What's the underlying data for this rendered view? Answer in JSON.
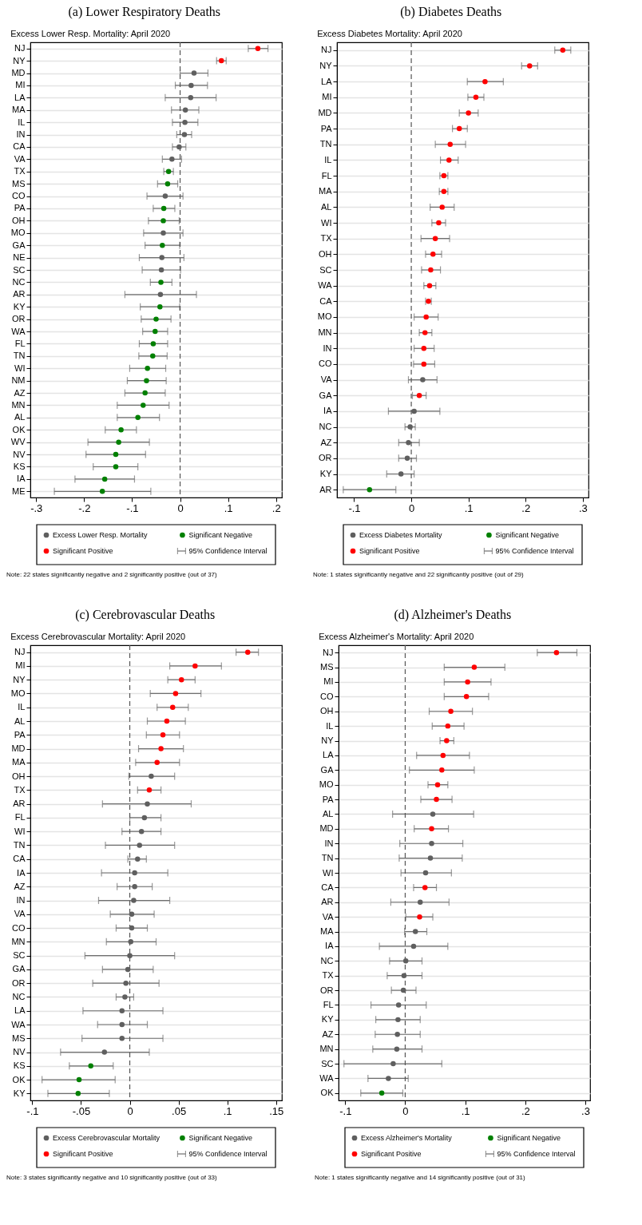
{
  "chart_data": [
    {
      "type": "scatter",
      "orientation": "horizontal",
      "title": "(a) Lower Respiratory Deaths",
      "subtitle": "Excess Lower Resp. Mortality: April 2020",
      "categories": [
        "NJ",
        "NY",
        "MD",
        "MI",
        "LA",
        "MA",
        "IL",
        "IN",
        "CA",
        "VA",
        "TX",
        "MS",
        "CO",
        "PA",
        "OH",
        "MO",
        "GA",
        "NE",
        "SC",
        "NC",
        "AR",
        "KY",
        "OR",
        "WA",
        "FL",
        "TN",
        "WI",
        "NM",
        "AZ",
        "MN",
        "AL",
        "OK",
        "WV",
        "NV",
        "KS",
        "IA",
        "ME"
      ],
      "series": [
        {
          "name": "Excess Lower Resp. Mortality",
          "color": "#5f5f5f",
          "values": [
            null,
            null,
            0.029,
            0.023,
            0.022,
            0.011,
            0.01,
            0.009,
            -0.002,
            -0.017,
            null,
            null,
            -0.031,
            null,
            null,
            -0.035,
            null,
            -0.038,
            -0.039,
            null,
            -0.041,
            null,
            null,
            null,
            null,
            null,
            null,
            null,
            null,
            null,
            null,
            null,
            null,
            null,
            null,
            null,
            null
          ],
          "errors": [
            null,
            null,
            [
              0,
              0.058
            ],
            [
              -0.01,
              0.057
            ],
            [
              -0.031,
              0.075
            ],
            [
              -0.018,
              0.039
            ],
            [
              -0.016,
              0.037
            ],
            [
              -0.007,
              0.024
            ],
            [
              -0.016,
              0.012
            ],
            [
              -0.037,
              0.003
            ],
            null,
            null,
            [
              -0.069,
              0.006
            ],
            null,
            null,
            [
              -0.076,
              0.006
            ],
            null,
            [
              -0.085,
              0.008
            ],
            [
              -0.079,
              0.001
            ],
            null,
            [
              -0.115,
              0.034
            ],
            null,
            null,
            null,
            null,
            null,
            null,
            null,
            null,
            null,
            null,
            null,
            null,
            null,
            null,
            null,
            null
          ]
        },
        {
          "name": "Significant Negative",
          "color": "#008000",
          "values": [
            null,
            null,
            null,
            null,
            null,
            null,
            null,
            null,
            null,
            null,
            -0.024,
            -0.026,
            null,
            -0.034,
            -0.035,
            null,
            -0.037,
            null,
            null,
            -0.04,
            null,
            -0.042,
            -0.05,
            -0.052,
            -0.056,
            -0.057,
            -0.068,
            -0.07,
            -0.073,
            -0.077,
            -0.088,
            -0.123,
            -0.128,
            -0.134,
            -0.134,
            -0.157,
            -0.162
          ],
          "errors": [
            null,
            null,
            null,
            null,
            null,
            null,
            null,
            null,
            null,
            null,
            [
              -0.034,
              -0.014
            ],
            [
              -0.047,
              -0.005
            ],
            null,
            [
              -0.056,
              -0.011
            ],
            [
              -0.066,
              -0.002
            ],
            null,
            [
              -0.073,
              -0.001
            ],
            null,
            null,
            [
              -0.062,
              -0.017
            ],
            null,
            [
              -0.083,
              -0.001
            ],
            [
              -0.081,
              -0.019
            ],
            [
              -0.078,
              -0.026
            ],
            [
              -0.085,
              -0.026
            ],
            [
              -0.086,
              -0.027
            ],
            [
              -0.105,
              -0.03
            ],
            [
              -0.11,
              -0.029
            ],
            [
              -0.115,
              -0.031
            ],
            [
              -0.131,
              -0.023
            ],
            [
              -0.131,
              -0.043
            ],
            [
              -0.156,
              -0.091
            ],
            [
              -0.192,
              -0.064
            ],
            [
              -0.196,
              -0.072
            ],
            [
              -0.181,
              -0.088
            ],
            [
              -0.219,
              -0.095
            ],
            [
              -0.262,
              -0.061
            ]
          ]
        },
        {
          "name": "Significant Positive",
          "color": "#ff0000",
          "values": [
            0.162,
            0.086,
            null,
            null,
            null,
            null,
            null,
            null,
            null,
            null,
            null,
            null,
            null,
            null,
            null,
            null,
            null,
            null,
            null,
            null,
            null,
            null,
            null,
            null,
            null,
            null,
            null,
            null,
            null,
            null,
            null,
            null,
            null,
            null,
            null,
            null,
            null
          ],
          "errors": [
            [
              0.142,
              0.183
            ],
            [
              0.076,
              0.096
            ],
            null,
            null,
            null,
            null,
            null,
            null,
            null,
            null,
            null,
            null,
            null,
            null,
            null,
            null,
            null,
            null,
            null,
            null,
            null,
            null,
            null,
            null,
            null,
            null,
            null,
            null,
            null,
            null,
            null,
            null,
            null,
            null,
            null,
            null,
            null
          ]
        }
      ],
      "xlim": [
        -0.312,
        0.212
      ],
      "xticks": [
        {
          "value": -0.3,
          "label": "-.3"
        },
        {
          "value": -0.2,
          "label": "-.2"
        },
        {
          "value": -0.1,
          "label": "-.1"
        },
        {
          "value": 0,
          "label": "0"
        },
        {
          "value": 0.1,
          "label": ".1"
        },
        {
          "value": 0.2,
          "label": ".2"
        }
      ],
      "ref_lines": [
        {
          "axis": "x",
          "value": 0,
          "line_style": "dashed"
        }
      ],
      "grid": "y",
      "legend": "bottom",
      "marker": "circle",
      "annotations": [
        "95% Confidence Interval",
        "Note: 22 states significantly negative and 2 significantly positive (out of 37)"
      ]
    },
    {
      "type": "scatter",
      "orientation": "horizontal",
      "title": "(b) Diabetes Deaths",
      "subtitle": "Excess Diabetes Mortality: April 2020",
      "categories": [
        "NJ",
        "NY",
        "LA",
        "MI",
        "MD",
        "PA",
        "TN",
        "IL",
        "FL",
        "MA",
        "AL",
        "WI",
        "TX",
        "OH",
        "SC",
        "WA",
        "CA",
        "MO",
        "MN",
        "IN",
        "CO",
        "VA",
        "GA",
        "IA",
        "NC",
        "AZ",
        "OR",
        "KY",
        "AR"
      ],
      "series": [
        {
          "name": "Excess Diabetes Mortality",
          "color": "#5f5f5f",
          "values": [
            null,
            null,
            null,
            null,
            null,
            null,
            null,
            null,
            null,
            null,
            null,
            null,
            null,
            null,
            null,
            null,
            null,
            null,
            null,
            null,
            null,
            0.02,
            null,
            0.005,
            -0.002,
            -0.005,
            -0.007,
            -0.018,
            null
          ],
          "errors": [
            null,
            null,
            null,
            null,
            null,
            null,
            null,
            null,
            null,
            null,
            null,
            null,
            null,
            null,
            null,
            null,
            null,
            null,
            null,
            null,
            null,
            [
              -0.005,
              0.045
            ],
            null,
            [
              -0.04,
              0.05
            ],
            [
              -0.011,
              0.007
            ],
            [
              -0.022,
              0.014
            ],
            [
              -0.022,
              0.009
            ],
            [
              -0.043,
              0.005
            ],
            null
          ]
        },
        {
          "name": "Significant Negative",
          "color": "#008000",
          "values": [
            null,
            null,
            null,
            null,
            null,
            null,
            null,
            null,
            null,
            null,
            null,
            null,
            null,
            null,
            null,
            null,
            null,
            null,
            null,
            null,
            null,
            null,
            null,
            null,
            null,
            null,
            null,
            null,
            -0.073
          ],
          "errors": [
            null,
            null,
            null,
            null,
            null,
            null,
            null,
            null,
            null,
            null,
            null,
            null,
            null,
            null,
            null,
            null,
            null,
            null,
            null,
            null,
            null,
            null,
            null,
            null,
            null,
            null,
            null,
            null,
            [
              -0.119,
              -0.027
            ]
          ]
        },
        {
          "name": "Significant Positive",
          "color": "#ff0000",
          "values": [
            0.265,
            0.207,
            0.129,
            0.113,
            0.1,
            0.084,
            0.068,
            0.066,
            0.057,
            0.057,
            0.054,
            0.048,
            0.042,
            0.038,
            0.034,
            0.032,
            0.03,
            0.026,
            0.024,
            0.022,
            0.022,
            null,
            0.014,
            null,
            null,
            null,
            null,
            null,
            null
          ],
          "errors": [
            [
              0.251,
              0.279
            ],
            [
              0.193,
              0.221
            ],
            [
              0.098,
              0.161
            ],
            [
              0.099,
              0.127
            ],
            [
              0.084,
              0.117
            ],
            [
              0.072,
              0.098
            ],
            [
              0.042,
              0.095
            ],
            [
              0.051,
              0.082
            ],
            [
              0.05,
              0.064
            ],
            [
              0.049,
              0.064
            ],
            [
              0.033,
              0.075
            ],
            [
              0.036,
              0.06
            ],
            [
              0.017,
              0.067
            ],
            [
              0.025,
              0.053
            ],
            [
              0.018,
              0.051
            ],
            [
              0.022,
              0.043
            ],
            [
              0.025,
              0.035
            ],
            [
              0.005,
              0.047
            ],
            [
              0.014,
              0.036
            ],
            [
              0.005,
              0.04
            ],
            [
              0.004,
              0.041
            ],
            null,
            [
              0.002,
              0.026
            ],
            null,
            null,
            null,
            null,
            null,
            null
          ]
        }
      ],
      "xlim": [
        -0.13,
        0.31
      ],
      "xticks": [
        {
          "value": -0.1,
          "label": "-.1"
        },
        {
          "value": 0,
          "label": "0"
        },
        {
          "value": 0.1,
          "label": ".1"
        },
        {
          "value": 0.2,
          "label": ".2"
        },
        {
          "value": 0.3,
          "label": ".3"
        }
      ],
      "ref_lines": [
        {
          "axis": "x",
          "value": 0,
          "line_style": "dashed"
        }
      ],
      "grid": "y",
      "legend": "bottom",
      "marker": "circle",
      "annotations": [
        "95% Confidence Interval",
        "Note: 1 states significantly negative and 22 significantly positive (out of 29)"
      ]
    },
    {
      "type": "scatter",
      "orientation": "horizontal",
      "title": "(c) Cerebrovascular Deaths",
      "subtitle": "Excess Cerebrovascular Mortality: April 2020",
      "categories": [
        "NJ",
        "MI",
        "NY",
        "MO",
        "IL",
        "AL",
        "PA",
        "MD",
        "MA",
        "OH",
        "TX",
        "AR",
        "FL",
        "WI",
        "TN",
        "CA",
        "IA",
        "AZ",
        "IN",
        "VA",
        "CO",
        "MN",
        "SC",
        "GA",
        "OR",
        "NC",
        "LA",
        "WA",
        "MS",
        "NV",
        "KS",
        "OK",
        "KY"
      ],
      "series": [
        {
          "name": "Excess Cerebrovascular Mortality",
          "color": "#5f5f5f",
          "values": [
            null,
            null,
            null,
            null,
            null,
            null,
            null,
            null,
            null,
            0.022,
            null,
            0.018,
            0.015,
            0.012,
            0.01,
            0.008,
            0.005,
            0.005,
            0.004,
            0.002,
            0.002,
            0.001,
            0.0,
            -0.002,
            -0.004,
            -0.005,
            -0.008,
            -0.008,
            -0.008,
            -0.026,
            null,
            null,
            null
          ],
          "errors": [
            null,
            null,
            null,
            null,
            null,
            null,
            null,
            null,
            null,
            [
              -0.001,
              0.046
            ],
            null,
            [
              -0.028,
              0.063
            ],
            [
              0.0,
              0.032
            ],
            [
              -0.008,
              0.032
            ],
            [
              -0.025,
              0.046
            ],
            [
              -0.002,
              0.017
            ],
            [
              -0.029,
              0.039
            ],
            [
              -0.013,
              0.023
            ],
            [
              -0.032,
              0.041
            ],
            [
              -0.02,
              0.025
            ],
            [
              -0.014,
              0.018
            ],
            [
              -0.024,
              0.027
            ],
            [
              -0.046,
              0.046
            ],
            [
              -0.028,
              0.024
            ],
            [
              -0.038,
              0.03
            ],
            [
              -0.014,
              0.004
            ],
            [
              -0.048,
              0.034
            ],
            [
              -0.033,
              0.018
            ],
            [
              -0.049,
              0.034
            ],
            [
              -0.071,
              0.02
            ],
            null,
            null,
            null
          ]
        },
        {
          "name": "Significant Negative",
          "color": "#008000",
          "values": [
            null,
            null,
            null,
            null,
            null,
            null,
            null,
            null,
            null,
            null,
            null,
            null,
            null,
            null,
            null,
            null,
            null,
            null,
            null,
            null,
            null,
            null,
            null,
            null,
            null,
            null,
            null,
            null,
            null,
            null,
            -0.04,
            -0.052,
            -0.053
          ],
          "errors": [
            null,
            null,
            null,
            null,
            null,
            null,
            null,
            null,
            null,
            null,
            null,
            null,
            null,
            null,
            null,
            null,
            null,
            null,
            null,
            null,
            null,
            null,
            null,
            null,
            null,
            null,
            null,
            null,
            null,
            null,
            [
              -0.062,
              -0.017
            ],
            [
              -0.09,
              -0.015
            ],
            [
              -0.084,
              -0.021
            ]
          ]
        },
        {
          "name": "Significant Positive",
          "color": "#ff0000",
          "values": [
            0.121,
            0.067,
            0.053,
            0.047,
            0.044,
            0.038,
            0.034,
            0.032,
            0.028,
            null,
            0.02,
            null,
            null,
            null,
            null,
            null,
            null,
            null,
            null,
            null,
            null,
            null,
            null,
            null,
            null,
            null,
            null,
            null,
            null,
            null,
            null,
            null,
            null
          ],
          "errors": [
            [
              0.109,
              0.132
            ],
            [
              0.041,
              0.094
            ],
            [
              0.039,
              0.067
            ],
            [
              0.021,
              0.073
            ],
            [
              0.028,
              0.06
            ],
            [
              0.018,
              0.057
            ],
            [
              0.017,
              0.051
            ],
            [
              0.009,
              0.055
            ],
            [
              0.006,
              0.051
            ],
            null,
            [
              0.008,
              0.032
            ],
            null,
            null,
            null,
            null,
            null,
            null,
            null,
            null,
            null,
            null,
            null,
            null,
            null,
            null,
            null,
            null,
            null,
            null,
            null,
            null,
            null,
            null
          ]
        }
      ],
      "xlim": [
        -0.102,
        0.156
      ],
      "xticks": [
        {
          "value": -0.1,
          "label": "-.1"
        },
        {
          "value": -0.05,
          "label": "-.05"
        },
        {
          "value": 0,
          "label": "0"
        },
        {
          "value": 0.05,
          "label": ".05"
        },
        {
          "value": 0.1,
          "label": ".1"
        },
        {
          "value": 0.15,
          "label": ".15"
        }
      ],
      "ref_lines": [
        {
          "axis": "x",
          "value": 0,
          "line_style": "dashed"
        }
      ],
      "grid": "y",
      "legend": "bottom",
      "marker": "circle",
      "annotations": [
        "95% Confidence Interval",
        "Note: 3 states significantly negative and 10 significantly positive (out of 33)"
      ]
    },
    {
      "type": "scatter",
      "orientation": "horizontal",
      "title": "(d) Alzheimer's Deaths",
      "subtitle": "Excess Alzheimer's Mortality: April 2020",
      "categories": [
        "NJ",
        "MS",
        "MI",
        "CO",
        "OH",
        "IL",
        "NY",
        "LA",
        "GA",
        "MO",
        "PA",
        "AL",
        "MD",
        "IN",
        "TN",
        "WI",
        "CA",
        "AR",
        "VA",
        "MA",
        "IA",
        "NC",
        "TX",
        "OR",
        "FL",
        "KY",
        "AZ",
        "MN",
        "SC",
        "WA",
        "OK"
      ],
      "series": [
        {
          "name": "Excess Alzheimer's Mortality",
          "color": "#5f5f5f",
          "values": [
            null,
            null,
            null,
            null,
            null,
            null,
            null,
            null,
            null,
            null,
            null,
            0.046,
            null,
            0.044,
            0.042,
            0.034,
            null,
            0.025,
            null,
            0.017,
            0.014,
            0.001,
            -0.002,
            -0.003,
            -0.011,
            -0.012,
            -0.013,
            -0.014,
            -0.02,
            -0.028,
            null
          ],
          "errors": [
            null,
            null,
            null,
            null,
            null,
            null,
            null,
            null,
            null,
            null,
            null,
            [
              -0.021,
              0.114
            ],
            null,
            [
              -0.009,
              0.096
            ],
            [
              -0.01,
              0.095
            ],
            [
              -0.007,
              0.077
            ],
            null,
            [
              -0.024,
              0.073
            ],
            null,
            [
              -0.001,
              0.036
            ],
            [
              -0.043,
              0.071
            ],
            [
              -0.026,
              0.028
            ],
            [
              -0.03,
              0.028
            ],
            [
              -0.023,
              0.018
            ],
            [
              -0.057,
              0.035
            ],
            [
              -0.049,
              0.025
            ],
            [
              -0.05,
              0.025
            ],
            [
              -0.054,
              0.028
            ],
            [
              -0.102,
              0.061
            ],
            [
              -0.062,
              0.005
            ],
            null
          ]
        },
        {
          "name": "Significant Negative",
          "color": "#008000",
          "values": [
            null,
            null,
            null,
            null,
            null,
            null,
            null,
            null,
            null,
            null,
            null,
            null,
            null,
            null,
            null,
            null,
            null,
            null,
            null,
            null,
            null,
            null,
            null,
            null,
            null,
            null,
            null,
            null,
            null,
            null,
            -0.039
          ],
          "errors": [
            null,
            null,
            null,
            null,
            null,
            null,
            null,
            null,
            null,
            null,
            null,
            null,
            null,
            null,
            null,
            null,
            null,
            null,
            null,
            null,
            null,
            null,
            null,
            null,
            null,
            null,
            null,
            null,
            null,
            null,
            [
              -0.074,
              -0.004
            ]
          ]
        },
        {
          "name": "Significant Positive",
          "color": "#ff0000",
          "values": [
            0.252,
            0.115,
            0.104,
            0.102,
            0.076,
            0.071,
            0.069,
            0.063,
            0.061,
            0.054,
            0.052,
            null,
            0.044,
            null,
            null,
            null,
            0.033,
            null,
            0.024,
            null,
            null,
            null,
            null,
            null,
            null,
            null,
            null,
            null,
            null,
            null,
            null
          ],
          "errors": [
            [
              0.22,
              0.286
            ],
            [
              0.065,
              0.166
            ],
            [
              0.065,
              0.143
            ],
            [
              0.065,
              0.139
            ],
            [
              0.04,
              0.112
            ],
            [
              0.045,
              0.098
            ],
            [
              0.058,
              0.081
            ],
            [
              0.019,
              0.107
            ],
            [
              0.007,
              0.115
            ],
            [
              0.038,
              0.071
            ],
            [
              0.026,
              0.078
            ],
            null,
            [
              0.015,
              0.072
            ],
            null,
            null,
            null,
            [
              0.014,
              0.052
            ],
            null,
            [
              0.001,
              0.046
            ],
            null,
            null,
            null,
            null,
            null,
            null,
            null,
            null,
            null,
            null,
            null,
            null
          ]
        }
      ],
      "xlim": [
        -0.111,
        0.308
      ],
      "xticks": [
        {
          "value": -0.1,
          "label": "-.1"
        },
        {
          "value": 0,
          "label": "0"
        },
        {
          "value": 0.1,
          "label": ".1"
        },
        {
          "value": 0.2,
          "label": ".2"
        },
        {
          "value": 0.3,
          "label": ".3"
        }
      ],
      "ref_lines": [
        {
          "axis": "x",
          "value": 0,
          "line_style": "dashed"
        }
      ],
      "grid": "y",
      "legend": "bottom",
      "marker": "circle",
      "annotations": [
        "95% Confidence Interval",
        "Note: 1 states significantly negative and 14 significantly positive (out of 31)"
      ]
    }
  ]
}
